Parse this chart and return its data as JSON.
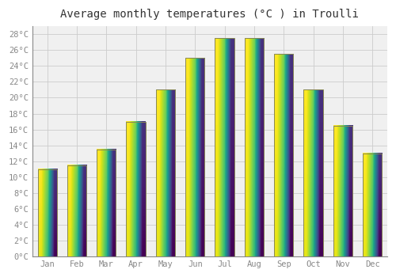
{
  "title": "Average monthly temperatures (°C ) in Troulli",
  "months": [
    "Jan",
    "Feb",
    "Mar",
    "Apr",
    "May",
    "Jun",
    "Jul",
    "Aug",
    "Sep",
    "Oct",
    "Nov",
    "Dec"
  ],
  "temperatures": [
    11.0,
    11.5,
    13.5,
    17.0,
    21.0,
    25.0,
    27.5,
    27.5,
    25.5,
    21.0,
    16.5,
    13.0
  ],
  "bar_color_top": "#FFC825",
  "bar_color_bottom": "#F5A800",
  "bar_edge_color": "#888855",
  "background_color": "#FFFFFF",
  "plot_bg_color": "#F0F0F0",
  "grid_color": "#CCCCCC",
  "title_fontsize": 10,
  "tick_fontsize": 7.5,
  "ylim": [
    0,
    29
  ],
  "yticks": [
    0,
    2,
    4,
    6,
    8,
    10,
    12,
    14,
    16,
    18,
    20,
    22,
    24,
    26,
    28
  ]
}
